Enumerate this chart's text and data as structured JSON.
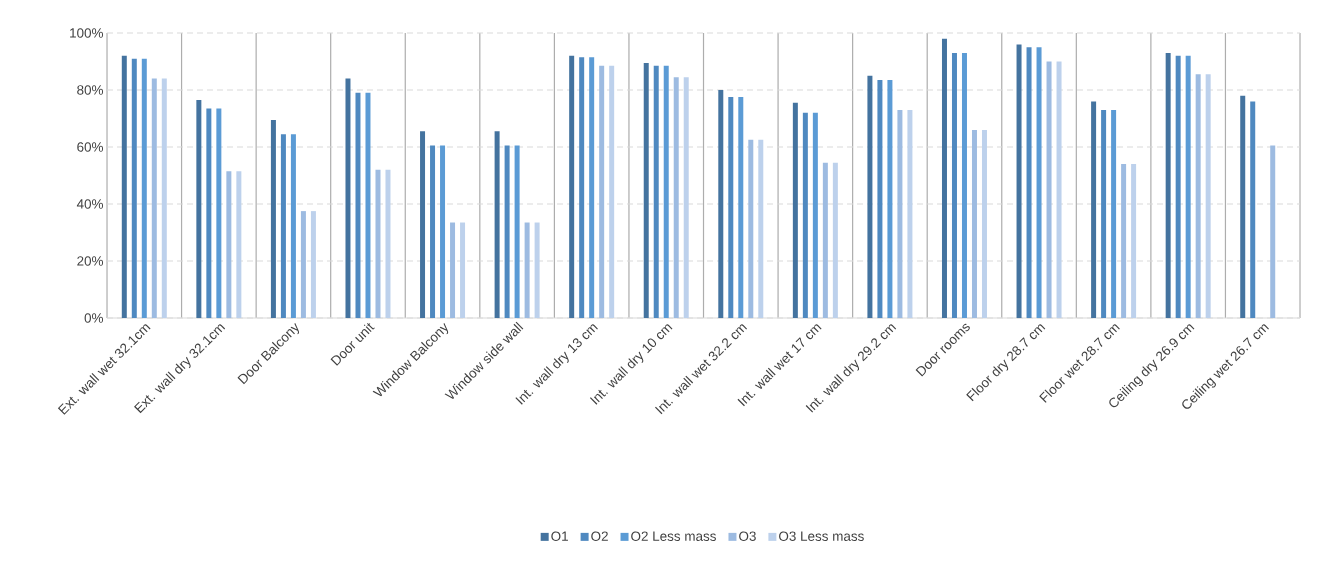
{
  "chart_data": {
    "type": "bar",
    "categories": [
      "Ext. wall wet 32.1cm",
      "Ext. wall dry 32.1cm",
      "Door Balcony",
      "Door unit",
      "Window Balcony",
      "Window side wall",
      "Int. wall dry 13 cm",
      "Int. wall dry 10 cm",
      "Int. wall wet 32.2 cm",
      "Int. wall wet 17 cm",
      "Int. wall dry 29.2 cm",
      "Door rooms",
      "Floor dry 28.7 cm",
      "Floor wet 28.7 cm",
      "Ceiling dry 26.9 cm",
      "Ceiling wet 26.7 cm"
    ],
    "series": [
      {
        "name": "O1",
        "color": "#44739f",
        "values": [
          92,
          76.5,
          69.5,
          84,
          65.5,
          65.5,
          92,
          89.5,
          80,
          75.5,
          85,
          98,
          96,
          76,
          93,
          78
        ]
      },
      {
        "name": "O2",
        "color": "#4f89c0",
        "values": [
          91,
          73.5,
          64.5,
          79,
          60.5,
          60.5,
          91.5,
          88.5,
          77.5,
          72,
          83.5,
          93,
          95,
          73,
          92,
          76
        ]
      },
      {
        "name": "O2 Less mass",
        "color": "#5b9bd5",
        "values": [
          91,
          73.5,
          64.5,
          79,
          60.5,
          60.5,
          91.5,
          88.5,
          77.5,
          72,
          83.5,
          93,
          95,
          73,
          92,
          null
        ]
      },
      {
        "name": "O3",
        "color": "#9dbbe1",
        "values": [
          84,
          51.5,
          37.5,
          52,
          33.5,
          33.5,
          88.5,
          84.5,
          62.5,
          54.5,
          73,
          66,
          90,
          54,
          85.5,
          60.5
        ]
      },
      {
        "name": "O3 Less mass",
        "color": "#bdd1ec",
        "values": [
          84,
          51.5,
          37.5,
          52,
          33.5,
          33.5,
          88.5,
          84.5,
          62.5,
          54.5,
          73,
          66,
          90,
          54,
          85.5,
          null
        ]
      }
    ],
    "ylim": [
      0,
      100
    ],
    "yticks": [
      {
        "value": 0,
        "label": "0%"
      },
      {
        "value": 20,
        "label": "20%"
      },
      {
        "value": 40,
        "label": "40%"
      },
      {
        "value": 60,
        "label": "60%"
      },
      {
        "value": 80,
        "label": "80%"
      },
      {
        "value": 100,
        "label": "100%"
      }
    ],
    "grid": true,
    "legend": "bottom"
  }
}
